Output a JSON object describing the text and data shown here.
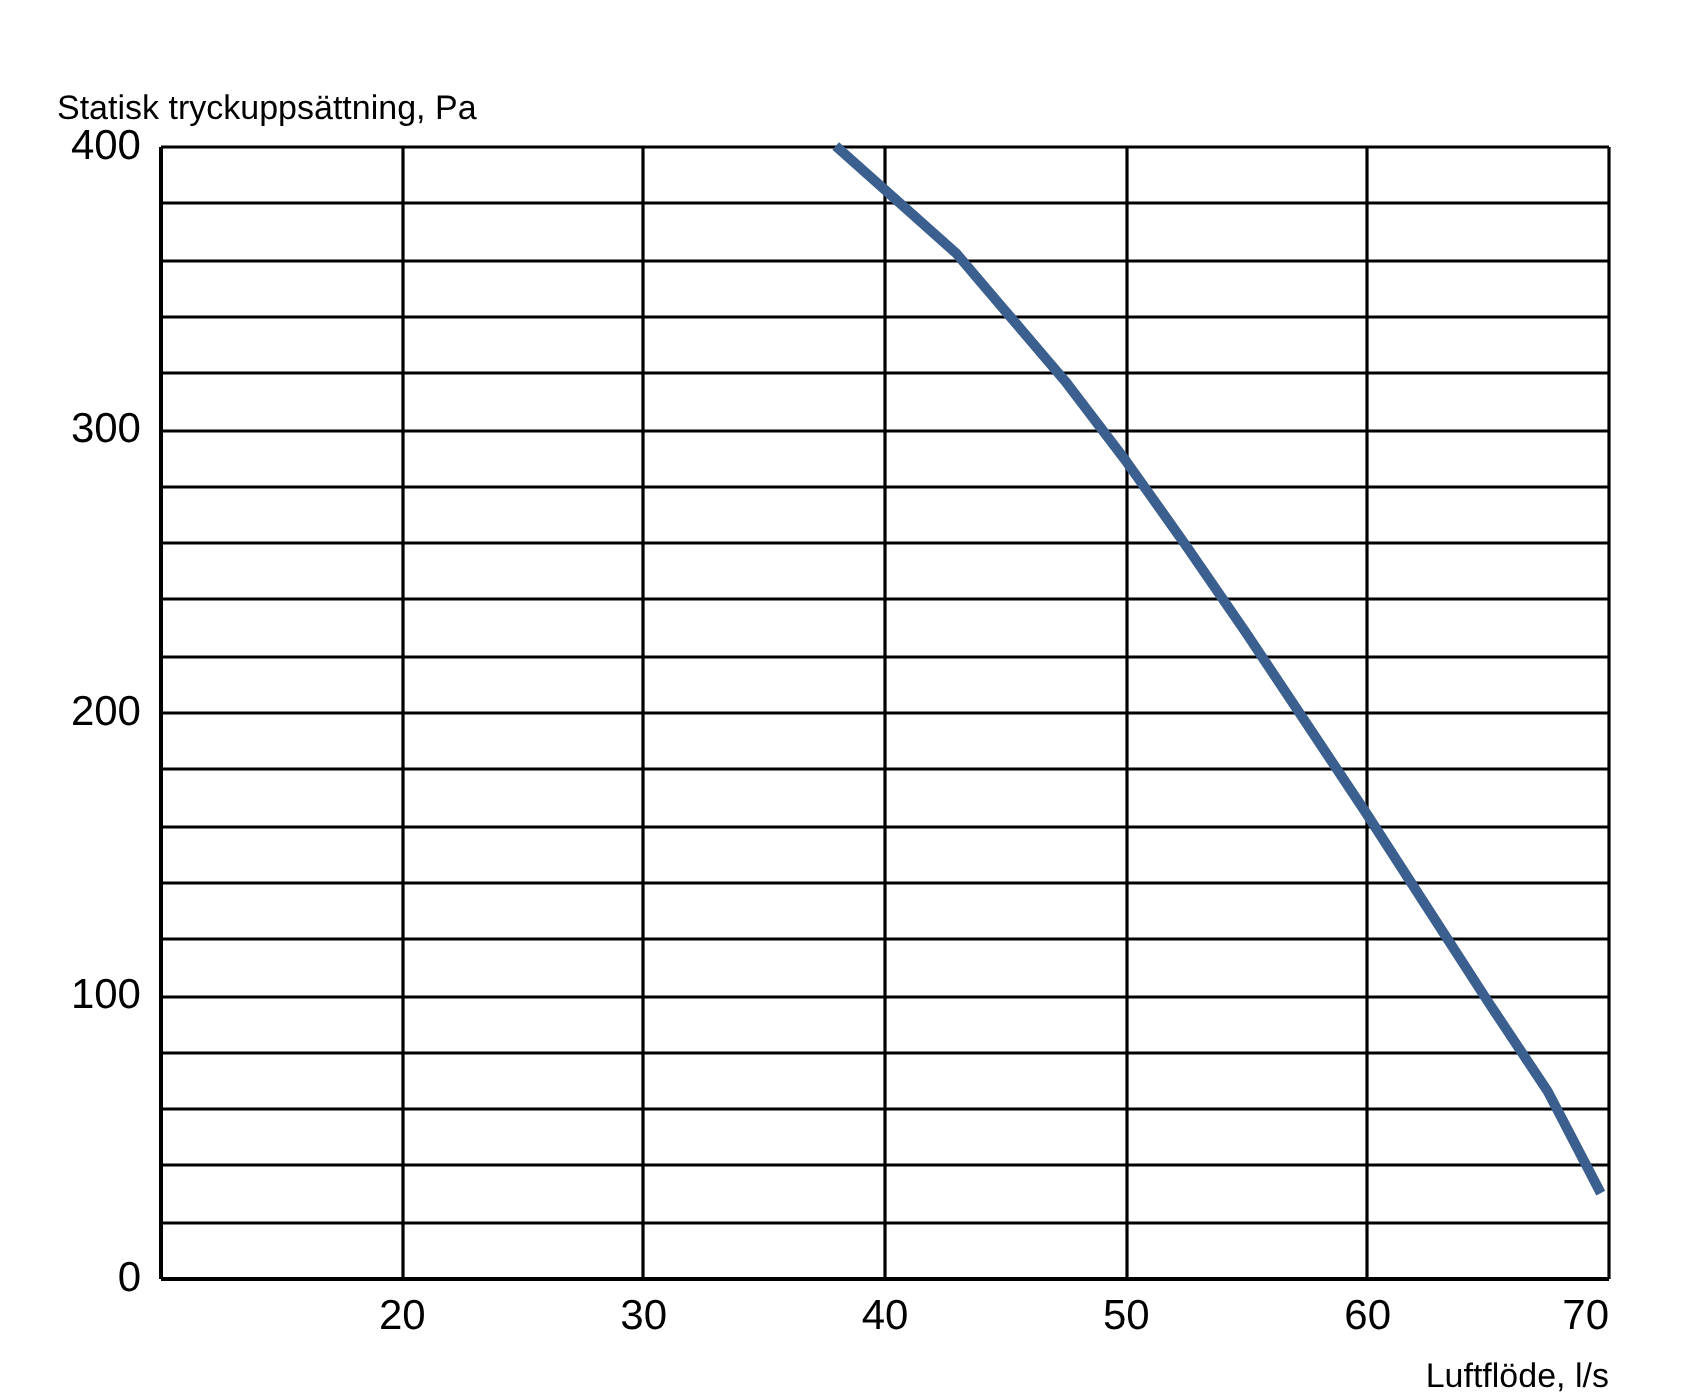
{
  "chart_data": {
    "type": "line",
    "xlabel": "Luftflöde, l/s",
    "ylabel": "Statisk tryckuppsättning, Pa",
    "xlim": [
      10,
      70
    ],
    "ylim": [
      0,
      400
    ],
    "xticks": [
      20,
      30,
      40,
      50,
      60,
      70
    ],
    "yticks": [
      0,
      {
        "value": 20,
        "label": null
      },
      {
        "value": 40,
        "label": null
      },
      {
        "value": 60,
        "label": null
      },
      {
        "value": 80,
        "label": null
      },
      100,
      {
        "value": 120,
        "label": null
      },
      {
        "value": 140,
        "label": null
      },
      {
        "value": 160,
        "label": null
      },
      {
        "value": 180,
        "label": null
      },
      200,
      {
        "value": 220,
        "label": null
      },
      {
        "value": 240,
        "label": null
      },
      {
        "value": 260,
        "label": null
      },
      {
        "value": 280,
        "label": null
      },
      300,
      {
        "value": 320,
        "label": null
      },
      {
        "value": 340,
        "label": null
      },
      {
        "value": 360,
        "label": null
      },
      {
        "value": 380,
        "label": null
      },
      400
    ],
    "grid": true,
    "marker": "none",
    "line_style": "solid",
    "series": [
      {
        "color": "#3b5f8e",
        "x": [
          38,
          40.5,
          43,
          45,
          47.5,
          50,
          52.5,
          55,
          57.5,
          60,
          62.5,
          65,
          67.5,
          69.7
        ],
        "values": [
          400,
          381,
          362,
          342,
          317,
          289,
          259,
          228,
          196,
          164,
          131,
          98,
          66,
          30
        ]
      }
    ]
  }
}
